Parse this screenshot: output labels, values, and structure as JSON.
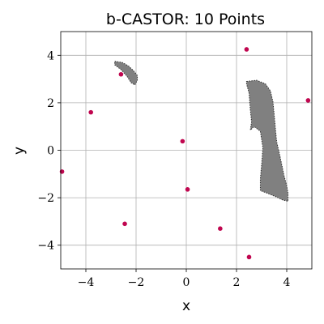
{
  "chart_data": {
    "type": "scatter",
    "title": "b-CASTOR: 10 Points",
    "xlabel": "x",
    "ylabel": "y",
    "xlim": [
      -5,
      5
    ],
    "ylim": [
      -5,
      5
    ],
    "xticks": [
      -4,
      -2,
      0,
      2,
      4
    ],
    "yticks": [
      -4,
      -2,
      0,
      2,
      4
    ],
    "xtick_labels": [
      "−4",
      "−2",
      "0",
      "2",
      "4"
    ],
    "ytick_labels": [
      "−4",
      "−2",
      "0",
      "2",
      "4"
    ],
    "grid": true,
    "point_color": "#c0064f",
    "region_color": "#808080",
    "points": [
      {
        "x": 2.4,
        "y": 4.25
      },
      {
        "x": -2.6,
        "y": 3.2
      },
      {
        "x": 4.85,
        "y": 2.1
      },
      {
        "x": -3.8,
        "y": 1.6
      },
      {
        "x": -0.15,
        "y": 0.38
      },
      {
        "x": -4.95,
        "y": -0.9
      },
      {
        "x": 0.05,
        "y": -1.65
      },
      {
        "x": -2.45,
        "y": -3.1
      },
      {
        "x": 1.35,
        "y": -3.3
      },
      {
        "x": 2.5,
        "y": -4.5
      }
    ],
    "regions": [
      {
        "polygon": [
          [
            -2.85,
            3.75
          ],
          [
            -2.55,
            3.7
          ],
          [
            -2.3,
            3.55
          ],
          [
            -2.1,
            3.35
          ],
          [
            -1.95,
            3.15
          ],
          [
            -1.95,
            2.95
          ],
          [
            -2.05,
            2.75
          ],
          [
            -2.2,
            2.85
          ],
          [
            -2.35,
            3.1
          ],
          [
            -2.6,
            3.4
          ],
          [
            -2.85,
            3.6
          ]
        ]
      },
      {
        "polygon": [
          [
            2.4,
            2.9
          ],
          [
            2.8,
            2.95
          ],
          [
            3.15,
            2.8
          ],
          [
            3.35,
            2.5
          ],
          [
            3.45,
            2.05
          ],
          [
            3.5,
            1.5
          ],
          [
            3.55,
            0.9
          ],
          [
            3.6,
            0.35
          ],
          [
            3.7,
            -0.1
          ],
          [
            3.8,
            -0.6
          ],
          [
            3.9,
            -1.1
          ],
          [
            4.0,
            -1.5
          ],
          [
            4.05,
            -1.8
          ],
          [
            4.05,
            -2.15
          ],
          [
            3.85,
            -2.1
          ],
          [
            3.55,
            -1.95
          ],
          [
            3.2,
            -1.8
          ],
          [
            2.95,
            -1.7
          ],
          [
            2.95,
            -1.2
          ],
          [
            3.0,
            -0.6
          ],
          [
            3.05,
            0.1
          ],
          [
            2.95,
            0.8
          ],
          [
            2.7,
            1.0
          ],
          [
            2.55,
            0.85
          ],
          [
            2.6,
            1.2
          ],
          [
            2.55,
            1.7
          ],
          [
            2.5,
            2.4
          ],
          [
            2.4,
            2.8
          ]
        ]
      }
    ]
  }
}
